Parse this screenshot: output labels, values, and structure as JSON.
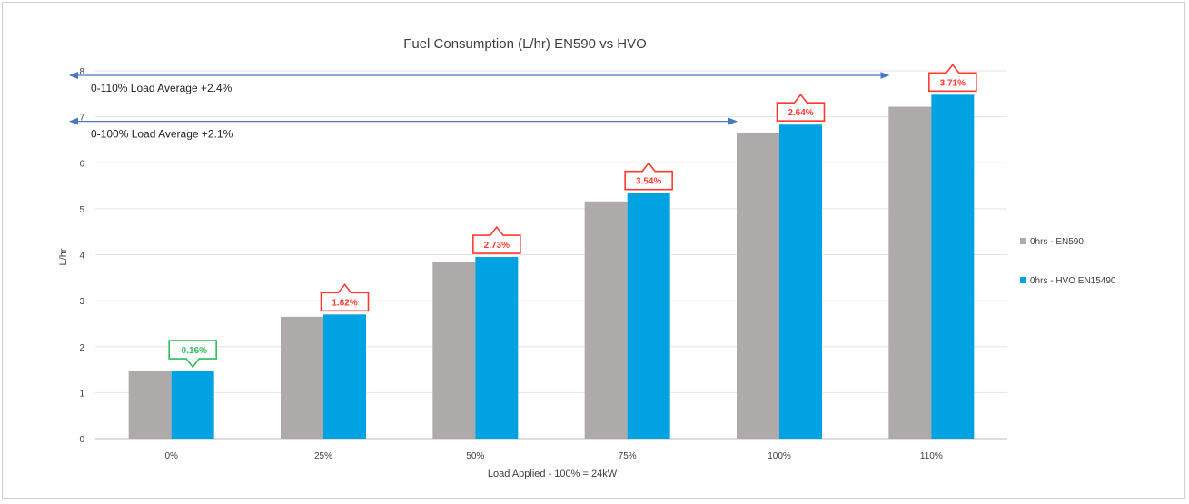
{
  "chart_data": {
    "type": "bar",
    "title": "Fuel Consumption (L/hr) EN590 vs HVO",
    "xlabel": "Load Applied - 100% = 24kW",
    "ylabel": "L/hr",
    "ylim": [
      0,
      8
    ],
    "yticks": [
      "0",
      "1",
      "2",
      "3",
      "4",
      "5",
      "6",
      "7",
      "8"
    ],
    "grid": true,
    "legend_position": "right",
    "categories": [
      "0%",
      "25%",
      "50%",
      "75%",
      "100%",
      "110%"
    ],
    "series": [
      {
        "name": "0hrs - EN590",
        "color": "#aeaaaa",
        "values": [
          1.48,
          2.65,
          3.85,
          5.16,
          6.65,
          7.22
        ]
      },
      {
        "name": "0hrs - HVO EN15490",
        "color": "#00a2e2",
        "values": [
          1.48,
          2.7,
          3.95,
          5.34,
          6.83,
          7.48
        ]
      }
    ],
    "difference_callouts": [
      {
        "category": "0%",
        "label": "-0.16%",
        "direction": "down",
        "color": "#2dbe5a"
      },
      {
        "category": "25%",
        "label": "1.82%",
        "direction": "up",
        "color": "#ff3b30"
      },
      {
        "category": "50%",
        "label": "2.73%",
        "direction": "up",
        "color": "#ff3b30"
      },
      {
        "category": "75%",
        "label": "3.54%",
        "direction": "up",
        "color": "#ff3b30"
      },
      {
        "category": "100%",
        "label": "2.64%",
        "direction": "up",
        "color": "#ff3b30"
      },
      {
        "category": "110%",
        "label": "3.71%",
        "direction": "up",
        "color": "#ff3b30"
      }
    ],
    "average_annotations": [
      {
        "label": "0-110% Load Average  +2.4%",
        "y": 8,
        "to_category": "110%"
      },
      {
        "label": "0-100% Load Average  +2.1%",
        "y": 7,
        "to_category": "100%"
      }
    ],
    "arrow_color": "#4a78c2"
  }
}
